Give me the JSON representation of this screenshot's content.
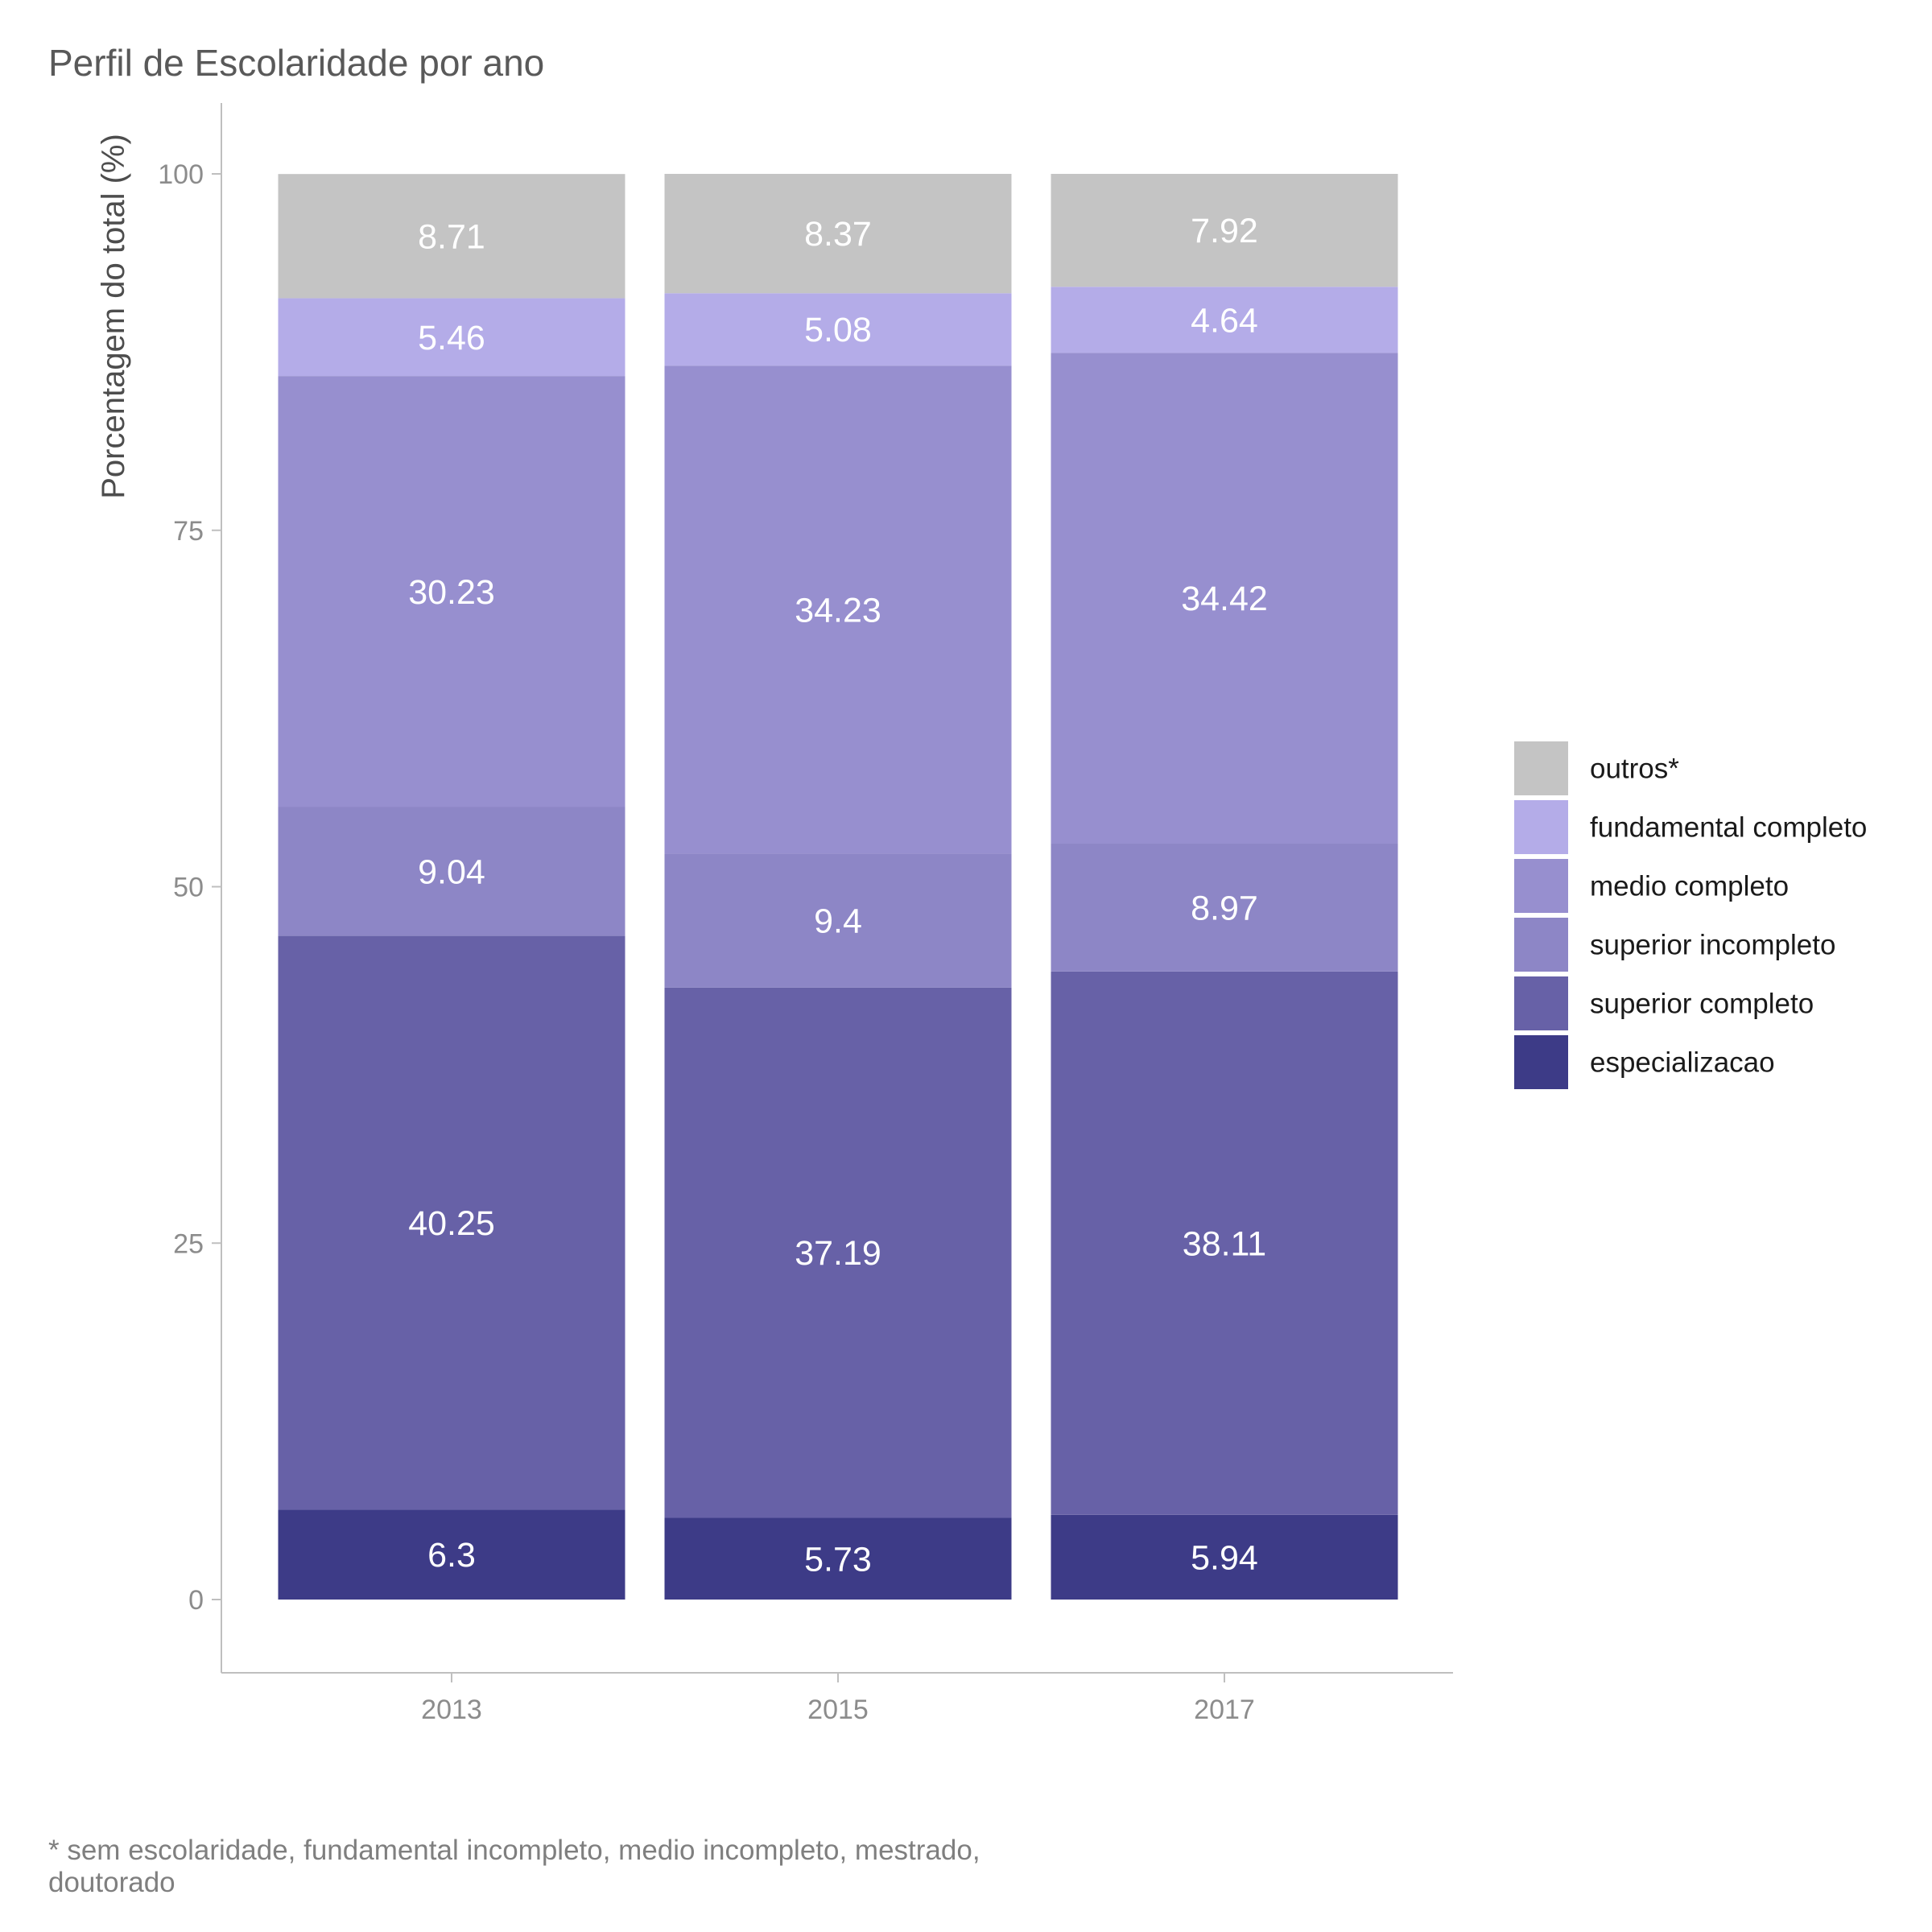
{
  "chart_data": {
    "type": "bar",
    "stacked": true,
    "title": "Perfil de Escolaridade por ano",
    "xlabel": "",
    "ylabel": "Porcentagem do total (%)",
    "ylim": [
      0,
      100
    ],
    "yticks": [
      "0",
      "25",
      "50",
      "75",
      "100"
    ],
    "ytick_values": [
      0,
      25,
      50,
      75,
      100
    ],
    "categories": [
      "2013",
      "2015",
      "2017"
    ],
    "series": [
      {
        "name": "especializacao",
        "color": "#3d3b87",
        "values": [
          6.3,
          5.73,
          5.94
        ],
        "labels": [
          "6.3",
          "5.73",
          "5.94"
        ]
      },
      {
        "name": "superior completo",
        "color": "#6761a7",
        "values": [
          40.25,
          37.19,
          38.11
        ],
        "labels": [
          "40.25",
          "37.19",
          "38.11"
        ]
      },
      {
        "name": "superior incompleto",
        "color": "#8d86c6",
        "values": [
          9.04,
          9.4,
          8.97
        ],
        "labels": [
          "9.04",
          "9.4",
          "8.97"
        ]
      },
      {
        "name": "medio completo",
        "color": "#978fcf",
        "values": [
          30.23,
          34.23,
          34.42
        ],
        "labels": [
          "30.23",
          "34.23",
          "34.42"
        ]
      },
      {
        "name": "fundamental completo",
        "color": "#b4ace8",
        "values": [
          5.46,
          5.08,
          4.64
        ],
        "labels": [
          "5.46",
          "5.08",
          "4.64"
        ]
      },
      {
        "name": "outros*",
        "color": "#c4c4c4",
        "values": [
          8.71,
          8.37,
          7.92
        ],
        "labels": [
          "8.71",
          "8.37",
          "7.92"
        ]
      }
    ],
    "legend": {
      "position": "right",
      "order": [
        "outros*",
        "fundamental completo",
        "medio completo",
        "superior incompleto",
        "superior completo",
        "especializacao"
      ]
    },
    "grid": false,
    "caption_lines": [
      "* sem escolaridade, fundamental incompleto, medio incompleto, mestrado,",
      "doutorado"
    ]
  }
}
